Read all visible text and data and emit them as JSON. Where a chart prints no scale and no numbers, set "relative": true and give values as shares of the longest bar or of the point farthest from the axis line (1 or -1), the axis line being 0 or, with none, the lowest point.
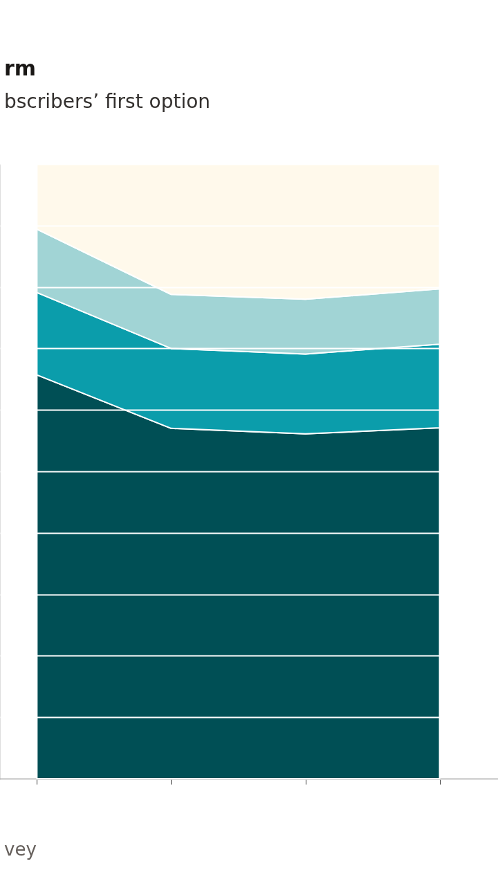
{
  "chart_data": {
    "type": "area",
    "title": "rm",
    "subtitle": "bscribers’ first option",
    "categories": [
      null,
      null,
      null,
      null
    ],
    "relative": true,
    "stacked": true,
    "grid": true,
    "series": [
      {
        "color": "#004f55",
        "values": [
          0.657,
          0.57,
          0.561,
          0.571
        ]
      },
      {
        "color": "#0b9dab",
        "values": [
          0.134,
          0.13,
          0.13,
          0.136
        ]
      },
      {
        "color": "#a1d4d5",
        "values": [
          0.103,
          0.088,
          0.089,
          0.09
        ]
      },
      {
        "color": "#fff9eb",
        "values": [
          0.106,
          0.212,
          0.22,
          0.203
        ]
      }
    ],
    "annotations": [
      "vey"
    ]
  }
}
